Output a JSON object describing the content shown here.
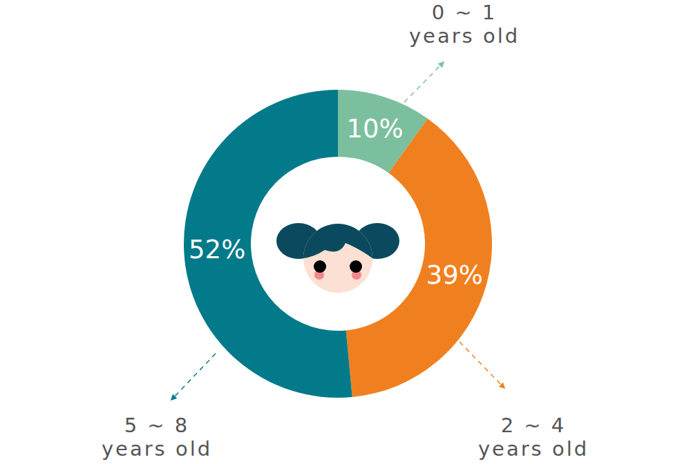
{
  "chart_data": {
    "type": "pie",
    "categories": [
      "0 ~ 1 years old",
      "2 ~ 4 years old",
      "5 ~ 8 years old"
    ],
    "values": [
      10,
      39,
      52
    ],
    "value_labels": [
      "10%",
      "39%",
      "52%"
    ],
    "colors": [
      "#7bbf9e",
      "#f0801f",
      "#037a8a"
    ],
    "data_labels": true
  }
}
